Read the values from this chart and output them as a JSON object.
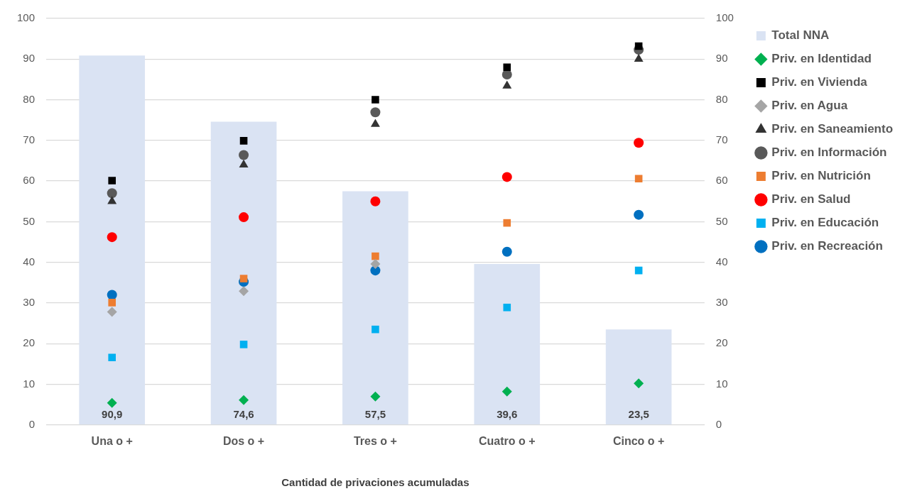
{
  "chart_data": {
    "type": "bar",
    "xlabel": "Cantidad de privaciones acumuladas",
    "categories": [
      "Una o +",
      "Dos o +",
      "Tres o +",
      "Cuatro o +",
      "Cinco o +"
    ],
    "series": [
      {
        "name": "Total NNA",
        "color": "#dae3f3",
        "values": [
          90.9,
          74.6,
          57.5,
          39.6,
          23.5
        ],
        "value_labels": [
          "90,9",
          "74,6",
          "57,5",
          "39,6",
          "23,5"
        ]
      },
      {
        "name": "Priv. en Identidad",
        "type": "scatter",
        "marker": "diamond",
        "color": "#00b050",
        "x": [
          "Una o +",
          "Dos o +",
          "Tres o +",
          "Cuatro o +",
          "Cinco o +"
        ],
        "values": [
          5.4,
          6.1,
          7,
          8.2,
          10.2
        ]
      },
      {
        "name": "Priv. en Vivienda",
        "type": "scatter",
        "marker": "square",
        "color": "#000000",
        "x": [
          "Una o +",
          "Dos o +",
          "Tres o +",
          "Cuatro o +",
          "Cinco o +"
        ],
        "values": [
          60.1,
          69.9,
          80,
          88,
          93.2
        ]
      },
      {
        "name": "Priv. en Agua",
        "type": "scatter",
        "marker": "diamond",
        "color": "#a5a5a5",
        "x": [
          "Una o +",
          "Dos o +",
          "Tres o +",
          "Cuatro o +",
          "Cinco o +"
        ],
        "values": [
          27.8,
          32.9,
          39.6,
          null,
          null
        ]
      },
      {
        "name": "Priv. en Saneamiento",
        "type": "scatter",
        "marker": "triangle",
        "color": "#333333",
        "x": [
          "Una o +",
          "Dos o +",
          "Tres o +",
          "Cuatro o +",
          "Cinco o +"
        ],
        "values": [
          55,
          64,
          74,
          83.4,
          90
        ]
      },
      {
        "name": "Priv. en Información",
        "type": "scatter",
        "marker": "circle",
        "color": "#595959",
        "x": [
          "Una o +",
          "Dos o +",
          "Tres o +",
          "Cuatro o +",
          "Cinco o +"
        ],
        "values": [
          57,
          66.4,
          76.9,
          86.2,
          92.3
        ]
      },
      {
        "name": "Priv. en Nutrición",
        "type": "scatter",
        "marker": "square",
        "color": "#ed7d31",
        "x": [
          "Una o +",
          "Dos o +",
          "Tres o +",
          "Cuatro o +",
          "Cinco o +"
        ],
        "values": [
          30.1,
          36,
          41.5,
          49.7,
          60.6
        ]
      },
      {
        "name": "Priv. en Salud",
        "type": "scatter",
        "marker": "circle",
        "color": "#ff0000",
        "x": [
          "Una o +",
          "Dos o +",
          "Tres o +",
          "Cuatro o +",
          "Cinco o +"
        ],
        "values": [
          46.2,
          51.1,
          55,
          61,
          69.4
        ]
      },
      {
        "name": "Priv. en Educación",
        "type": "scatter",
        "marker": "square",
        "color": "#00b0f0",
        "x": [
          "Una o +",
          "Dos o +",
          "Tres o +",
          "Cuatro o +",
          "Cinco o +"
        ],
        "values": [
          16.6,
          19.8,
          23.5,
          28.9,
          38
        ]
      },
      {
        "name": "Priv. en Recreación",
        "type": "scatter",
        "marker": "circle",
        "color": "#0070c0",
        "x": [
          "Una o +",
          "Dos o +",
          "Tres o +",
          "Cuatro o +",
          "Cinco o +"
        ],
        "values": [
          32,
          35.2,
          38,
          42.6,
          51.7
        ]
      }
    ],
    "ylim": [
      0,
      100
    ],
    "yticks": [
      0,
      10,
      20,
      30,
      40,
      50,
      60,
      70,
      80,
      90,
      100
    ],
    "y2lim": [
      0,
      100
    ],
    "y2ticks": [
      0,
      10,
      20,
      30,
      40,
      50,
      60,
      70,
      80,
      90,
      100
    ],
    "grid": "y",
    "legend": "right"
  }
}
